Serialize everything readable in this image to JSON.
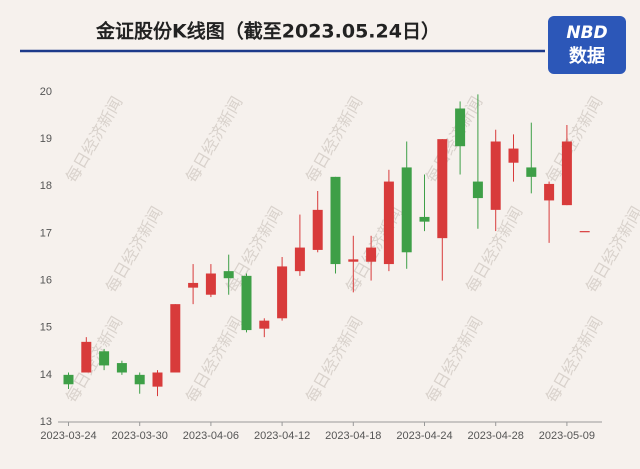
{
  "chart_data": {
    "type": "candlestick",
    "title": "金证股份K线图（截至2023.05.24日）",
    "brand": [
      "NBD",
      "数据"
    ],
    "watermark": "每日经济新闻",
    "categories": [
      "2023-03-24",
      null,
      null,
      null,
      "2023-03-30",
      null,
      null,
      null,
      "2023-04-06",
      null,
      null,
      null,
      "2023-04-12",
      null,
      null,
      null,
      "2023-04-18",
      null,
      null,
      null,
      "2023-04-24",
      null,
      null,
      null,
      "2023-04-28",
      null,
      null,
      null,
      "2023-05-09",
      null
    ],
    "series": [
      {
        "open": [
          14.0,
          14.05,
          14.5,
          14.25,
          14.0,
          13.75,
          14.05,
          15.85,
          15.7,
          16.2,
          16.1,
          14.98,
          15.2,
          16.2,
          16.65,
          18.2,
          16.4,
          16.4,
          16.35,
          18.4,
          17.35,
          16.9,
          19.65,
          18.1,
          17.5,
          18.5,
          18.4,
          17.7,
          17.6,
          17.05
        ],
        "high": [
          14.05,
          14.8,
          14.55,
          14.3,
          14.05,
          14.1,
          15.5,
          16.35,
          16.35,
          16.55,
          16.15,
          15.2,
          16.5,
          17.4,
          17.9,
          18.2,
          16.95,
          16.95,
          18.35,
          18.95,
          18.25,
          19.0,
          19.8,
          19.95,
          19.2,
          19.1,
          19.35,
          18.1,
          19.3,
          17.05
        ],
        "low": [
          13.7,
          14.05,
          14.1,
          14.0,
          13.6,
          13.55,
          14.05,
          15.5,
          15.65,
          15.7,
          14.9,
          14.8,
          15.15,
          16.1,
          16.6,
          16.15,
          15.75,
          16.0,
          16.2,
          16.25,
          17.05,
          16.0,
          18.25,
          17.1,
          17.05,
          18.1,
          17.85,
          16.8,
          17.6,
          17.05
        ],
        "close": [
          13.8,
          14.7,
          14.2,
          14.05,
          13.8,
          14.05,
          15.5,
          15.95,
          16.15,
          16.05,
          14.95,
          15.15,
          16.3,
          16.7,
          17.5,
          16.35,
          16.45,
          16.7,
          18.1,
          16.6,
          17.25,
          19.0,
          18.85,
          17.75,
          18.95,
          18.8,
          18.2,
          18.05,
          18.95,
          17.05
        ]
      }
    ],
    "up_color": "#d83b3b",
    "down_color": "#3e9f47",
    "ylim": [
      13,
      20
    ],
    "yticks": [
      13,
      14,
      15,
      16,
      17,
      18,
      19,
      20
    ],
    "grid": false
  }
}
